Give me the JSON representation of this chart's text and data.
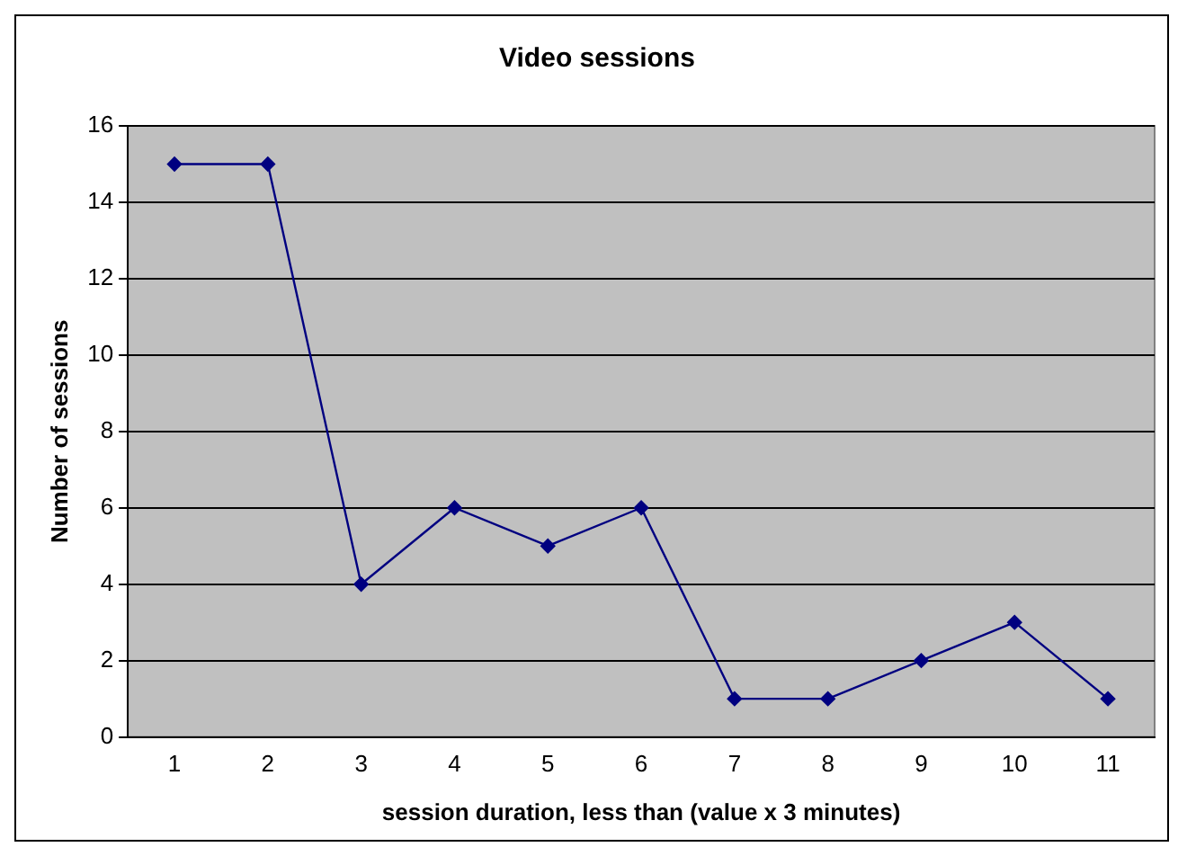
{
  "chart_data": {
    "type": "line",
    "title": "Video sessions",
    "xlabel": "session duration, less than (value x 3 minutes)",
    "ylabel": "Number of sessions",
    "categories": [
      "1",
      "2",
      "3",
      "4",
      "5",
      "6",
      "7",
      "8",
      "9",
      "10",
      "11"
    ],
    "series": [
      {
        "color": "#000080",
        "values": [
          15,
          15,
          4,
          6,
          5,
          6,
          1,
          1,
          2,
          3,
          1
        ]
      }
    ],
    "ylim": [
      0,
      16
    ],
    "yticks": [
      0,
      2,
      4,
      6,
      8,
      10,
      12,
      14,
      16
    ],
    "grid": "y",
    "marker": "diamond",
    "line_style": "solid"
  }
}
